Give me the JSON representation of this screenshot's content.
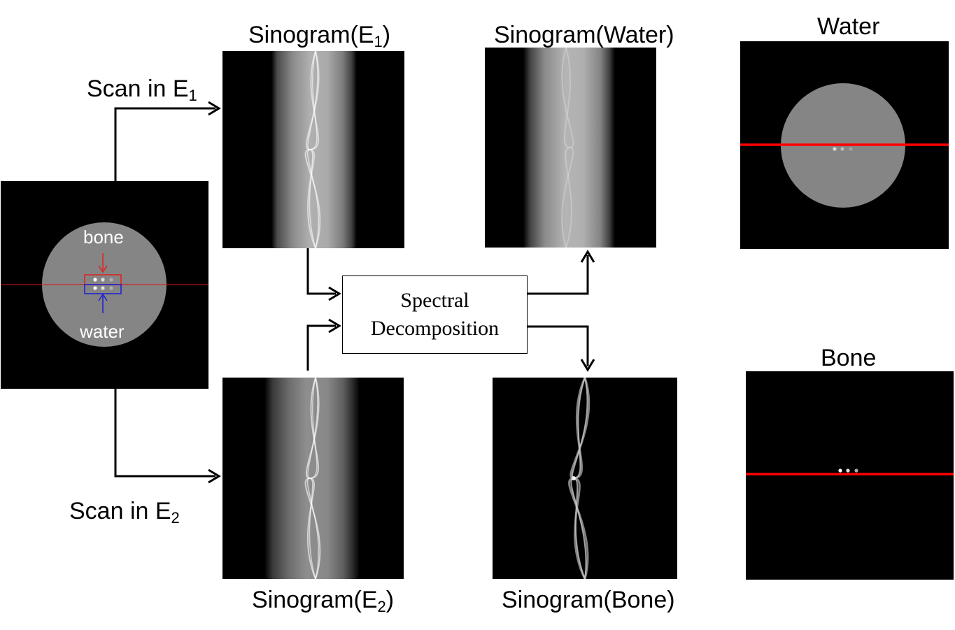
{
  "phantom": {
    "label_bone": "bone",
    "label_water": "water",
    "bone_arrow_color": "#e0201e",
    "water_arrow_color": "#1c1cd6",
    "line_color": "#e01010"
  },
  "scans": {
    "scan1": {
      "text": "Scan in E",
      "sub": "1"
    },
    "scan2": {
      "text": "Scan in E",
      "sub": "2"
    }
  },
  "sinograms": {
    "e1": {
      "prefix": "Sinogram(E",
      "sub": "1",
      "suffix": ")"
    },
    "e2": {
      "prefix": "Sinogram(E",
      "sub": "2",
      "suffix": ")"
    },
    "water": {
      "text": "Sinogram(Water)"
    },
    "bone": {
      "text": "Sinogram(Bone)"
    }
  },
  "decomposition": {
    "line1": "Spectral",
    "line2": "Decomposition"
  },
  "outputs": {
    "water_title": "Water",
    "bone_title": "Bone"
  },
  "colors": {
    "profile_line": "#ff0000",
    "arrows": "#000000"
  }
}
